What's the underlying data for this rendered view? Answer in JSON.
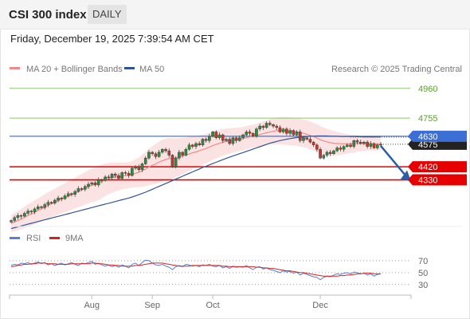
{
  "header": {
    "title": "CSI 300 index",
    "period": "DAILY",
    "timestamp": "Friday, December 19, 2025 7:39:54 AM CET"
  },
  "legend": {
    "ma20": "MA 20 + Bollinger Bands",
    "ma50": "MA 50",
    "source": "Research © 2025 Trading Central",
    "rsi": "RSI",
    "rsi_ma": "9MA"
  },
  "colors": {
    "ma20": "#f08a8a",
    "ma50": "#2f5597",
    "bands": "#fbdada",
    "resistance": "#8cc56b",
    "support": "#e60000",
    "current": "#3b6fd6",
    "rsi": "#5a7fd6",
    "rsi_ma": "#d42222",
    "candle_up": "#2e8b3d",
    "candle_down": "#c0392b"
  },
  "chart_data": [
    {
      "type": "candlestick",
      "ylim": [
        4020,
        5030
      ],
      "x_ticks": [
        "Aug",
        "Sep",
        "Oct",
        "Dec"
      ],
      "levels": [
        {
          "value": 4960,
          "label": "4960",
          "kind": "resistance"
        },
        {
          "value": 4755,
          "label": "4755",
          "kind": "resistance"
        },
        {
          "value": 4630,
          "label": "4630",
          "kind": "current"
        },
        {
          "value": 4420,
          "label": "4420",
          "kind": "support"
        },
        {
          "value": 4330,
          "label": "4330",
          "kind": "support"
        }
      ],
      "last_price_label": "4575",
      "closes": [
        4050,
        4070,
        4085,
        4080,
        4100,
        4115,
        4110,
        4130,
        4145,
        4140,
        4160,
        4175,
        4170,
        4190,
        4205,
        4200,
        4220,
        4235,
        4230,
        4250,
        4270,
        4265,
        4285,
        4300,
        4310,
        4295,
        4330,
        4325,
        4350,
        4345,
        4370,
        4360,
        4340,
        4380,
        4375,
        4360,
        4410,
        4420,
        4400,
        4440,
        4480,
        4520,
        4510,
        4490,
        4520,
        4540,
        4530,
        4500,
        4420,
        4480,
        4520,
        4500,
        4540,
        4570,
        4560,
        4580,
        4570,
        4610,
        4600,
        4630,
        4660,
        4620,
        4640,
        4600,
        4610,
        4580,
        4620,
        4600,
        4620,
        4640,
        4660,
        4650,
        4630,
        4680,
        4700,
        4690,
        4720,
        4710,
        4700,
        4690,
        4660,
        4680,
        4650,
        4670,
        4640,
        4660,
        4600,
        4620,
        4610,
        4590,
        4570,
        4540,
        4480,
        4500,
        4520,
        4510,
        4530,
        4550,
        4540,
        4560,
        4570,
        4560,
        4600,
        4590,
        4580,
        4590,
        4560,
        4580,
        4550,
        4570,
        4575
      ],
      "ma20": [
        4030,
        4040,
        4050,
        4060,
        4072,
        4085,
        4095,
        4107,
        4120,
        4130,
        4142,
        4155,
        4165,
        4175,
        4187,
        4197,
        4207,
        4218,
        4228,
        4238,
        4250,
        4260,
        4272,
        4282,
        4292,
        4300,
        4310,
        4320,
        4330,
        4338,
        4345,
        4350,
        4352,
        4356,
        4360,
        4362,
        4368,
        4375,
        4382,
        4392,
        4404,
        4418,
        4430,
        4440,
        4452,
        4462,
        4470,
        4476,
        4478,
        4482,
        4488,
        4494,
        4500,
        4508,
        4516,
        4522,
        4530,
        4538,
        4546,
        4556,
        4566,
        4574,
        4582,
        4588,
        4594,
        4598,
        4602,
        4606,
        4610,
        4614,
        4620,
        4626,
        4630,
        4636,
        4642,
        4648,
        4654,
        4660,
        4664,
        4668,
        4668,
        4668,
        4666,
        4664,
        4662,
        4660,
        4656,
        4650,
        4644,
        4636,
        4628,
        4618,
        4606,
        4598,
        4592,
        4586,
        4582,
        4580,
        4578,
        4578,
        4578,
        4578,
        4580,
        4580,
        4580,
        4580,
        4578,
        4578,
        4576,
        4576,
        4576
      ],
      "band_width": [
        60,
        62,
        66,
        70,
        74,
        78,
        80,
        82,
        84,
        86,
        88,
        90,
        92,
        94,
        96,
        98,
        100,
        102,
        104,
        106,
        108,
        110,
        112,
        114,
        116,
        118,
        118,
        116,
        112,
        108,
        104,
        100,
        96,
        92,
        90,
        90,
        92,
        96,
        102,
        110,
        118,
        126,
        132,
        138,
        142,
        144,
        144,
        142,
        138,
        134,
        130,
        126,
        122,
        118,
        114,
        110,
        106,
        104,
        102,
        100,
        98,
        96,
        94,
        92,
        90,
        88,
        86,
        84,
        82,
        80,
        80,
        80,
        80,
        80,
        82,
        84,
        86,
        88,
        90,
        92,
        94,
        96,
        96,
        96,
        96,
        96,
        96,
        96,
        96,
        96,
        96,
        96,
        94,
        92,
        90,
        88,
        84,
        80,
        76,
        72,
        68,
        64,
        60,
        56,
        52,
        50,
        48,
        46,
        44,
        42,
        40
      ],
      "ma50": [
        3995,
        4001,
        4007,
        4013,
        4019,
        4025,
        4031,
        4037,
        4043,
        4049,
        4055,
        4061,
        4067,
        4073,
        4079,
        4085,
        4091,
        4097,
        4103,
        4109,
        4115,
        4121,
        4127,
        4133,
        4139,
        4145,
        4151,
        4157,
        4163,
        4169,
        4175,
        4181,
        4187,
        4193,
        4199,
        4205,
        4212,
        4220,
        4228,
        4236,
        4245,
        4255,
        4265,
        4275,
        4285,
        4295,
        4305,
        4315,
        4325,
        4335,
        4345,
        4355,
        4365,
        4375,
        4385,
        4395,
        4405,
        4415,
        4424,
        4433,
        4442,
        4451,
        4460,
        4469,
        4478,
        4486,
        4494,
        4502,
        4510,
        4518,
        4526,
        4534,
        4542,
        4550,
        4558,
        4566,
        4574,
        4582,
        4588,
        4594,
        4600,
        4605,
        4610,
        4614,
        4618,
        4621,
        4624,
        4626,
        4628,
        4630,
        4631,
        4632,
        4632,
        4632,
        4632,
        4631,
        4630,
        4630,
        4629,
        4629,
        4628,
        4628,
        4628,
        4627,
        4627,
        4626,
        4626,
        4626,
        4625,
        4625,
        4625
      ]
    },
    {
      "type": "line",
      "title": "RSI",
      "ylim": [
        15,
        90
      ],
      "y_ticks": [
        70,
        50,
        30
      ],
      "series": [
        {
          "name": "RSI",
          "values": [
            62,
            64,
            63,
            66,
            65,
            67,
            64,
            66,
            68,
            65,
            67,
            63,
            65,
            62,
            64,
            66,
            63,
            65,
            67,
            64,
            62,
            66,
            65,
            67,
            69,
            64,
            66,
            63,
            61,
            63,
            60,
            62,
            59,
            63,
            61,
            58,
            64,
            66,
            62,
            67,
            71,
            70,
            66,
            63,
            62,
            64,
            61,
            59,
            55,
            60,
            62,
            60,
            64,
            63,
            61,
            62,
            60,
            63,
            62,
            64,
            61,
            60,
            62,
            58,
            60,
            57,
            61,
            59,
            60,
            59,
            62,
            58,
            55,
            59,
            60,
            56,
            58,
            55,
            54,
            52,
            50,
            53,
            51,
            52,
            49,
            51,
            46,
            49,
            47,
            45,
            43,
            42,
            38,
            42,
            44,
            43,
            46,
            48,
            47,
            49,
            50,
            48,
            51,
            50,
            48,
            49,
            46,
            48,
            44,
            47,
            48
          ]
        },
        {
          "name": "9MA",
          "values": [
            60,
            61,
            62,
            63,
            64,
            64,
            65,
            65,
            66,
            66,
            66,
            65,
            65,
            65,
            64,
            64,
            64,
            64,
            65,
            65,
            65,
            65,
            65,
            65,
            66,
            66,
            65,
            65,
            64,
            63,
            63,
            62,
            62,
            61,
            61,
            61,
            61,
            62,
            62,
            63,
            64,
            65,
            66,
            66,
            66,
            66,
            65,
            64,
            63,
            62,
            61,
            61,
            61,
            61,
            62,
            62,
            62,
            62,
            62,
            62,
            62,
            62,
            62,
            61,
            61,
            60,
            60,
            60,
            60,
            60,
            60,
            60,
            60,
            59,
            59,
            58,
            58,
            57,
            57,
            56,
            55,
            54,
            53,
            53,
            52,
            51,
            50,
            50,
            49,
            48,
            47,
            46,
            45,
            44,
            44,
            44,
            44,
            44,
            45,
            45,
            46,
            46,
            47,
            48,
            48,
            49,
            49,
            49,
            48,
            48,
            48
          ]
        }
      ]
    }
  ]
}
